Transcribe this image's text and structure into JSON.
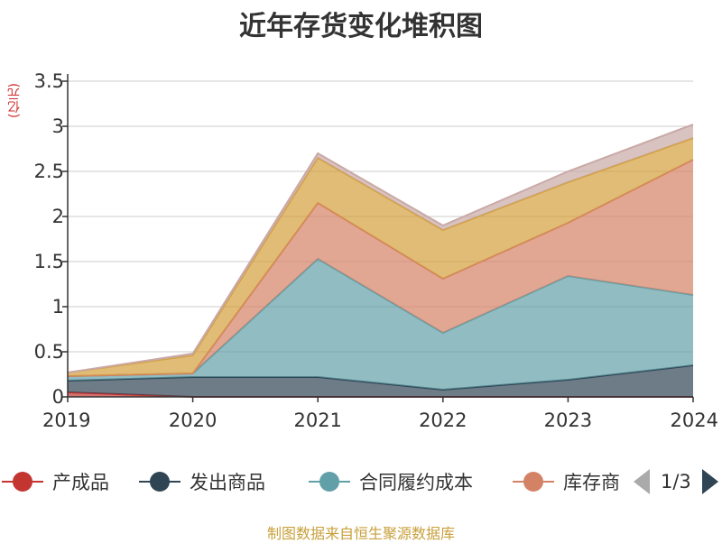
{
  "title": "近年存货变化堆积图",
  "unit_label": "(亿元)",
  "source": "制图数据来自恒生聚源数据库",
  "legend": {
    "items": [
      {
        "label": "产成品",
        "color": "#c23531"
      },
      {
        "label": "发出商品",
        "color": "#2f4554"
      },
      {
        "label": "合同履约成本",
        "color": "#61a0a8"
      },
      {
        "label": "库存商",
        "color": "#d48265"
      }
    ],
    "page": "1/3"
  },
  "chart_data": {
    "type": "area",
    "stacked": true,
    "categories": [
      "2019",
      "2020",
      "2021",
      "2022",
      "2023",
      "2024"
    ],
    "ylim": [
      0,
      3.5
    ],
    "yticks": [
      "0",
      "0.5",
      "1",
      "1.5",
      "2",
      "2.5",
      "3",
      "3.5"
    ],
    "grid": true,
    "series": [
      {
        "name": "产成品",
        "color": "#c23531",
        "values": [
          0.05,
          0.0,
          0.0,
          0.0,
          0.0,
          0.0
        ]
      },
      {
        "name": "发出商品",
        "color": "#2f4554",
        "values": [
          0.13,
          0.22,
          0.22,
          0.08,
          0.19,
          0.35
        ]
      },
      {
        "name": "合同履约成本",
        "color": "#61a0a8",
        "values": [
          0.05,
          0.04,
          1.31,
          0.63,
          1.15,
          0.78
        ]
      },
      {
        "name": "库存商",
        "color": "#d48265",
        "values": [
          0.0,
          0.0,
          0.62,
          0.6,
          0.59,
          1.5
        ]
      },
      {
        "color": "#d4a03c",
        "values": [
          0.04,
          0.2,
          0.5,
          0.54,
          0.45,
          0.24
        ]
      },
      {
        "color": "#c9a9a6",
        "values": [
          0.0,
          0.02,
          0.05,
          0.05,
          0.12,
          0.15
        ]
      }
    ]
  }
}
